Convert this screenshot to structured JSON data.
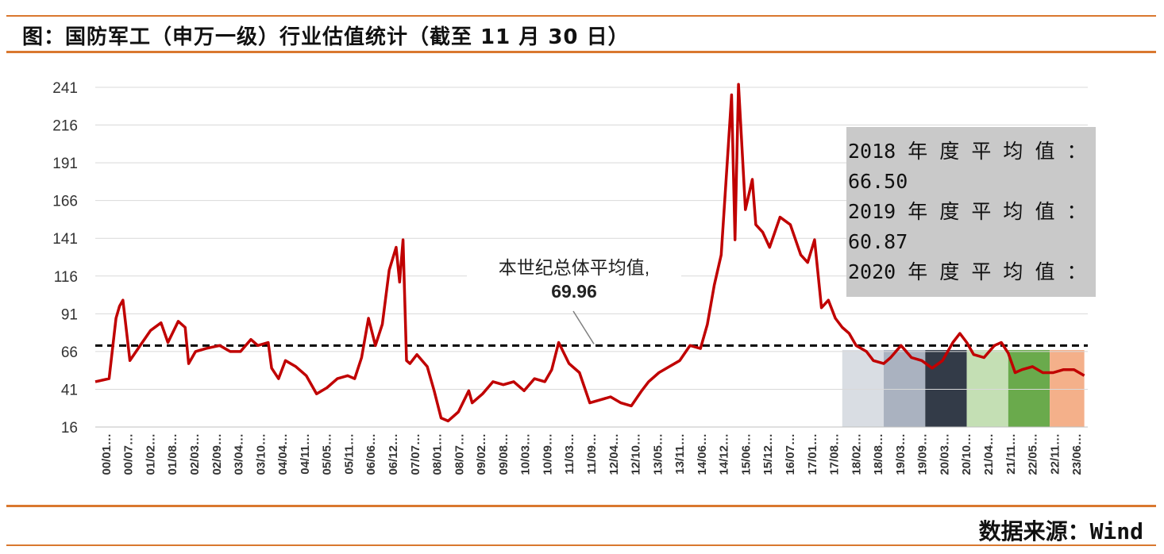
{
  "title": "图：国防军工（申万一级）行业估值统计（截至 11 月 30 日）",
  "source": "数据来源：Wind",
  "annotation": {
    "text": "本世纪总体平均值,",
    "value": "69.96"
  },
  "note_lines": [
    "2018 年 度 平 均 值 ：",
    "66.50",
    "2019 年 度 平 均 值 ：",
    "60.87",
    "2020 年 度 平 均 值 ："
  ],
  "colors": {
    "line": "#c00000",
    "accent": "#d9782f",
    "grid": "#d9d9d9",
    "avg": "#000000",
    "note_bg": "#c9c9c9"
  },
  "chart_data": {
    "type": "line",
    "title": "",
    "xlabel": "",
    "ylabel": "",
    "ylim": [
      16,
      241
    ],
    "yticks": [
      241,
      216,
      191,
      166,
      141,
      116,
      91,
      66,
      41,
      16
    ],
    "xtick_labels": [
      "00/01…",
      "00/07…",
      "01/02…",
      "01/08…",
      "02/03…",
      "02/09…",
      "03/04…",
      "03/10…",
      "04/04…",
      "04/11…",
      "05/05…",
      "05/11…",
      "06/06…",
      "06/12…",
      "07/07…",
      "08/01…",
      "08/07…",
      "09/02…",
      "09/08…",
      "10/03…",
      "10/09…",
      "11/03…",
      "11/09…",
      "12/04…",
      "12/10…",
      "13/05…",
      "13/11…",
      "14/06…",
      "14/12…",
      "15/06…",
      "15/12…",
      "16/07…",
      "17/01…",
      "17/08…",
      "18/02…",
      "18/08…",
      "19/03…",
      "19/09…",
      "20/03…",
      "20/10…",
      "21/04…",
      "21/11…",
      "22/05…",
      "22/11…",
      "23/06…"
    ],
    "average_line": 69.96,
    "shaded_years": [
      {
        "year": "2018",
        "start": "2018-01",
        "end": "2019-01",
        "color": "#d9dde3"
      },
      {
        "year": "2019",
        "start": "2019-01",
        "end": "2020-01",
        "color": "#aab2c0"
      },
      {
        "year": "2020",
        "start": "2020-01",
        "end": "2021-01",
        "color": "#333b48"
      },
      {
        "year": "2021",
        "start": "2021-01",
        "end": "2022-01",
        "color": "#c4dfb4"
      },
      {
        "year": "2022",
        "start": "2022-01",
        "end": "2023-01",
        "color": "#6aaa4c"
      },
      {
        "year": "2023",
        "start": "2023-01",
        "end": "2023-11",
        "color": "#f4b08a"
      }
    ],
    "series": [
      {
        "x": [
          "2000-01",
          "2000-03",
          "2000-05",
          "2000-07",
          "2000-08",
          "2000-09",
          "2000-11",
          "2001-02",
          "2001-05",
          "2001-08",
          "2001-10",
          "2002-01",
          "2002-03",
          "2002-04",
          "2002-06",
          "2002-09",
          "2003-01",
          "2003-04",
          "2003-07",
          "2003-10",
          "2003-12",
          "2004-03",
          "2004-04",
          "2004-06",
          "2004-08",
          "2004-11",
          "2005-02",
          "2005-05",
          "2005-08",
          "2005-11",
          "2006-02",
          "2006-04",
          "2006-06",
          "2006-08",
          "2006-10",
          "2006-12",
          "2007-02",
          "2007-04",
          "2007-05",
          "2007-06",
          "2007-07",
          "2007-08",
          "2007-10",
          "2008-01",
          "2008-03",
          "2008-05",
          "2008-07",
          "2008-10",
          "2009-01",
          "2009-02",
          "2009-05",
          "2009-08",
          "2009-11",
          "2010-02",
          "2010-05",
          "2010-08",
          "2010-11",
          "2011-01",
          "2011-03",
          "2011-06",
          "2011-09",
          "2011-12",
          "2012-03",
          "2012-06",
          "2012-09",
          "2012-12",
          "2013-03",
          "2013-05",
          "2013-08",
          "2013-11",
          "2014-02",
          "2014-05",
          "2014-08",
          "2014-10",
          "2014-12",
          "2015-02",
          "2015-04",
          "2015-05",
          "2015-06",
          "2015-07",
          "2015-09",
          "2015-11",
          "2015-12",
          "2016-02",
          "2016-04",
          "2016-07",
          "2016-10",
          "2017-01",
          "2017-03",
          "2017-05",
          "2017-07",
          "2017-09",
          "2017-11",
          "2018-01",
          "2018-03",
          "2018-05",
          "2018-08",
          "2018-10",
          "2019-01",
          "2019-03",
          "2019-06",
          "2019-09",
          "2019-12",
          "2020-03",
          "2020-06",
          "2020-09",
          "2020-11",
          "2021-01",
          "2021-03",
          "2021-06",
          "2021-09",
          "2021-11",
          "2022-01",
          "2022-03",
          "2022-05",
          "2022-08",
          "2022-11",
          "2023-02",
          "2023-05",
          "2023-08",
          "2023-11"
        ],
        "y": [
          46,
          47,
          48,
          88,
          96,
          100,
          60,
          70,
          80,
          85,
          72,
          86,
          82,
          58,
          66,
          68,
          70,
          66,
          66,
          74,
          70,
          72,
          55,
          48,
          60,
          56,
          50,
          38,
          42,
          48,
          50,
          48,
          62,
          88,
          70,
          84,
          120,
          135,
          112,
          140,
          60,
          58,
          64,
          56,
          40,
          22,
          20,
          26,
          40,
          32,
          38,
          46,
          44,
          46,
          40,
          48,
          46,
          54,
          72,
          58,
          52,
          32,
          34,
          36,
          32,
          30,
          40,
          46,
          52,
          56,
          60,
          70,
          68,
          84,
          110,
          130,
          200,
          236,
          140,
          243,
          160,
          180,
          150,
          145,
          135,
          155,
          150,
          130,
          125,
          140,
          95,
          100,
          88,
          82,
          78,
          70,
          66,
          60,
          58,
          62,
          70,
          62,
          60,
          55,
          60,
          72,
          78,
          72,
          64,
          62,
          70,
          72,
          65,
          52,
          54,
          56,
          52,
          52,
          54,
          54,
          50
        ]
      }
    ]
  }
}
